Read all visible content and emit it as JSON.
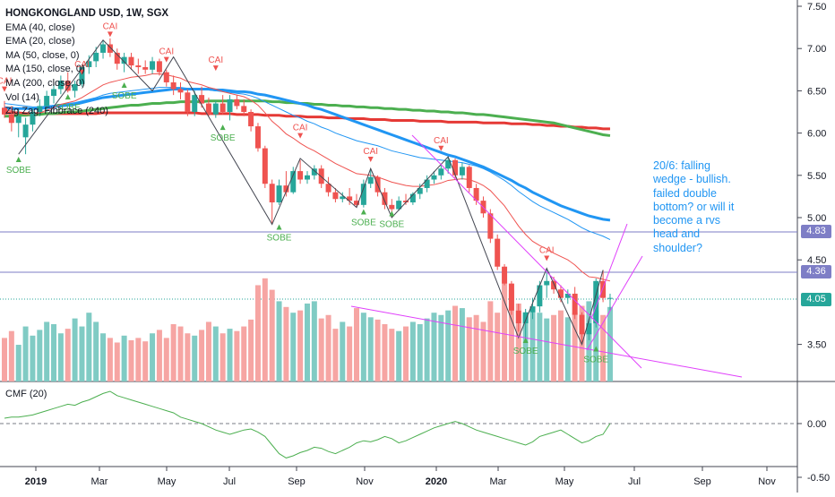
{
  "chart_data": {
    "type": "candlestick",
    "title": "HONGKONGLAND USD, 1W, SGX",
    "indicators": [
      "EMA (40, close)",
      "EMA (20, close)",
      "MA (50, close, 0)",
      "MA (150, close, 0)",
      "MA (200, close, 0)",
      "Vol (14)",
      "Zig Zag, Fibbrace (240)"
    ],
    "cmf_label": "CMF (20)",
    "note": "20/6: falling wedge - bullish. failed double bottom? or will it become a rvs head and shoulder?",
    "price_axis": {
      "ticks": [
        "7.50",
        "7.00",
        "6.50",
        "6.00",
        "5.50",
        "5.00",
        "4.50",
        "3.50"
      ],
      "ylim": [
        3.2,
        7.5
      ]
    },
    "cmf_axis": {
      "ticks": [
        "0.00",
        "-0.50"
      ]
    },
    "time_axis": {
      "ticks": [
        "2019",
        "Mar",
        "May",
        "Jul",
        "Sep",
        "Nov",
        "2020",
        "Mar",
        "May",
        "Jul",
        "Sep",
        "Nov"
      ]
    },
    "price_labels": [
      {
        "value": "4.83",
        "color": "#7e7ec6"
      },
      {
        "value": "4.36",
        "color": "#7e7ec6"
      },
      {
        "value": "4.05",
        "color": "#26a69a"
      }
    ],
    "candles": [
      {
        "o": 6.3,
        "h": 6.38,
        "l": 6.18,
        "c": 6.22
      },
      {
        "o": 6.22,
        "h": 6.32,
        "l": 6.02,
        "c": 6.12
      },
      {
        "o": 6.12,
        "h": 6.28,
        "l": 5.95,
        "c": 6.2
      },
      {
        "o": 5.95,
        "h": 6.18,
        "l": 5.75,
        "c": 6.1
      },
      {
        "o": 6.1,
        "h": 6.3,
        "l": 6.02,
        "c": 6.25
      },
      {
        "o": 6.25,
        "h": 6.4,
        "l": 6.2,
        "c": 6.32
      },
      {
        "o": 6.32,
        "h": 6.5,
        "l": 6.25,
        "c": 6.44
      },
      {
        "o": 6.44,
        "h": 6.58,
        "l": 6.35,
        "c": 6.52
      },
      {
        "o": 6.52,
        "h": 6.68,
        "l": 6.46,
        "c": 6.62
      },
      {
        "o": 6.62,
        "h": 6.72,
        "l": 6.48,
        "c": 6.5
      },
      {
        "o": 6.5,
        "h": 6.62,
        "l": 6.42,
        "c": 6.58
      },
      {
        "o": 6.58,
        "h": 6.8,
        "l": 6.55,
        "c": 6.78
      },
      {
        "o": 6.78,
        "h": 6.92,
        "l": 6.7,
        "c": 6.85
      },
      {
        "o": 6.85,
        "h": 7.02,
        "l": 6.78,
        "c": 6.95
      },
      {
        "o": 6.95,
        "h": 7.1,
        "l": 6.88,
        "c": 7.05
      },
      {
        "o": 7.05,
        "h": 7.12,
        "l": 6.9,
        "c": 6.95
      },
      {
        "o": 6.95,
        "h": 7.0,
        "l": 6.75,
        "c": 6.82
      },
      {
        "o": 6.82,
        "h": 6.95,
        "l": 6.72,
        "c": 6.9
      },
      {
        "o": 6.9,
        "h": 6.95,
        "l": 6.75,
        "c": 6.8
      },
      {
        "o": 6.8,
        "h": 6.88,
        "l": 6.7,
        "c": 6.78
      },
      {
        "o": 6.78,
        "h": 6.86,
        "l": 6.7,
        "c": 6.75
      },
      {
        "o": 6.75,
        "h": 6.9,
        "l": 6.7,
        "c": 6.85
      },
      {
        "o": 6.85,
        "h": 6.88,
        "l": 6.68,
        "c": 6.72
      },
      {
        "o": 6.72,
        "h": 6.75,
        "l": 6.55,
        "c": 6.6
      },
      {
        "o": 6.6,
        "h": 6.68,
        "l": 6.45,
        "c": 6.52
      },
      {
        "o": 6.52,
        "h": 6.6,
        "l": 6.4,
        "c": 6.48
      },
      {
        "o": 6.48,
        "h": 6.52,
        "l": 6.2,
        "c": 6.25
      },
      {
        "o": 6.25,
        "h": 6.5,
        "l": 6.2,
        "c": 6.45
      },
      {
        "o": 6.45,
        "h": 6.55,
        "l": 6.3,
        "c": 6.35
      },
      {
        "o": 6.35,
        "h": 6.42,
        "l": 6.2,
        "c": 6.22
      },
      {
        "o": 6.22,
        "h": 6.38,
        "l": 6.18,
        "c": 6.35
      },
      {
        "o": 6.35,
        "h": 6.45,
        "l": 6.22,
        "c": 6.25
      },
      {
        "o": 6.25,
        "h": 6.45,
        "l": 6.15,
        "c": 6.4
      },
      {
        "o": 6.4,
        "h": 6.45,
        "l": 6.28,
        "c": 6.32
      },
      {
        "o": 6.32,
        "h": 6.4,
        "l": 6.2,
        "c": 6.25
      },
      {
        "o": 6.25,
        "h": 6.28,
        "l": 6.02,
        "c": 6.08
      },
      {
        "o": 6.08,
        "h": 6.12,
        "l": 5.78,
        "c": 5.82
      },
      {
        "o": 5.82,
        "h": 5.85,
        "l": 5.35,
        "c": 5.4
      },
      {
        "o": 5.4,
        "h": 5.45,
        "l": 4.92,
        "c": 5.18
      },
      {
        "o": 5.18,
        "h": 5.45,
        "l": 5.15,
        "c": 5.38
      },
      {
        "o": 5.38,
        "h": 5.55,
        "l": 5.25,
        "c": 5.3
      },
      {
        "o": 5.3,
        "h": 5.6,
        "l": 5.28,
        "c": 5.55
      },
      {
        "o": 5.55,
        "h": 5.68,
        "l": 5.4,
        "c": 5.45
      },
      {
        "o": 5.45,
        "h": 5.55,
        "l": 5.4,
        "c": 5.5
      },
      {
        "o": 5.5,
        "h": 5.62,
        "l": 5.45,
        "c": 5.58
      },
      {
        "o": 5.58,
        "h": 5.62,
        "l": 5.35,
        "c": 5.4
      },
      {
        "o": 5.4,
        "h": 5.48,
        "l": 5.25,
        "c": 5.3
      },
      {
        "o": 5.3,
        "h": 5.35,
        "l": 5.18,
        "c": 5.22
      },
      {
        "o": 5.22,
        "h": 5.3,
        "l": 5.18,
        "c": 5.25
      },
      {
        "o": 5.25,
        "h": 5.35,
        "l": 5.15,
        "c": 5.2
      },
      {
        "o": 5.2,
        "h": 5.28,
        "l": 5.12,
        "c": 5.15
      },
      {
        "o": 5.15,
        "h": 5.45,
        "l": 5.12,
        "c": 5.4
      },
      {
        "o": 5.4,
        "h": 5.58,
        "l": 5.35,
        "c": 5.48
      },
      {
        "o": 5.48,
        "h": 5.5,
        "l": 5.25,
        "c": 5.3
      },
      {
        "o": 5.3,
        "h": 5.35,
        "l": 5.1,
        "c": 5.15
      },
      {
        "o": 5.15,
        "h": 5.22,
        "l": 5.0,
        "c": 5.1
      },
      {
        "o": 5.1,
        "h": 5.25,
        "l": 5.08,
        "c": 5.2
      },
      {
        "o": 5.2,
        "h": 5.28,
        "l": 5.15,
        "c": 5.18
      },
      {
        "o": 5.18,
        "h": 5.3,
        "l": 5.15,
        "c": 5.28
      },
      {
        "o": 5.28,
        "h": 5.4,
        "l": 5.22,
        "c": 5.35
      },
      {
        "o": 5.35,
        "h": 5.5,
        "l": 5.3,
        "c": 5.45
      },
      {
        "o": 5.45,
        "h": 5.55,
        "l": 5.4,
        "c": 5.5
      },
      {
        "o": 5.5,
        "h": 5.62,
        "l": 5.45,
        "c": 5.58
      },
      {
        "o": 5.58,
        "h": 5.72,
        "l": 5.52,
        "c": 5.68
      },
      {
        "o": 5.68,
        "h": 5.7,
        "l": 5.45,
        "c": 5.5
      },
      {
        "o": 5.5,
        "h": 5.65,
        "l": 5.45,
        "c": 5.6
      },
      {
        "o": 5.6,
        "h": 5.62,
        "l": 5.3,
        "c": 5.35
      },
      {
        "o": 5.35,
        "h": 5.4,
        "l": 5.15,
        "c": 5.2
      },
      {
        "o": 5.2,
        "h": 5.25,
        "l": 5.0,
        "c": 5.05
      },
      {
        "o": 5.05,
        "h": 5.1,
        "l": 4.7,
        "c": 4.75
      },
      {
        "o": 4.75,
        "h": 4.8,
        "l": 4.38,
        "c": 4.42
      },
      {
        "o": 4.42,
        "h": 4.45,
        "l": 4.2,
        "c": 4.22
      },
      {
        "o": 4.22,
        "h": 4.25,
        "l": 3.85,
        "c": 3.9
      },
      {
        "o": 3.9,
        "h": 3.98,
        "l": 3.65,
        "c": 3.75
      },
      {
        "o": 3.75,
        "h": 3.92,
        "l": 3.58,
        "c": 3.88
      },
      {
        "o": 3.88,
        "h": 4.05,
        "l": 3.8,
        "c": 3.95
      },
      {
        "o": 3.95,
        "h": 4.25,
        "l": 3.88,
        "c": 4.2
      },
      {
        "o": 4.2,
        "h": 4.4,
        "l": 4.05,
        "c": 4.25
      },
      {
        "o": 4.25,
        "h": 4.3,
        "l": 4.1,
        "c": 4.15
      },
      {
        "o": 4.15,
        "h": 4.2,
        "l": 4.0,
        "c": 4.05
      },
      {
        "o": 4.05,
        "h": 4.15,
        "l": 3.98,
        "c": 4.1
      },
      {
        "o": 4.1,
        "h": 4.18,
        "l": 3.8,
        "c": 3.85
      },
      {
        "o": 3.85,
        "h": 3.88,
        "l": 3.5,
        "c": 3.62
      },
      {
        "o": 3.62,
        "h": 3.8,
        "l": 3.55,
        "c": 3.75
      },
      {
        "o": 3.75,
        "h": 4.28,
        "l": 3.7,
        "c": 4.25
      },
      {
        "o": 4.25,
        "h": 4.38,
        "l": 4.0,
        "c": 4.05
      },
      {
        "o": 4.05,
        "h": 4.1,
        "l": 3.9,
        "c": 4.05
      }
    ],
    "volume": [
      38,
      44,
      32,
      48,
      40,
      45,
      52,
      50,
      42,
      46,
      55,
      48,
      60,
      52,
      42,
      38,
      34,
      40,
      36,
      38,
      35,
      42,
      45,
      38,
      50,
      48,
      42,
      40,
      45,
      52,
      48,
      42,
      46,
      44,
      48,
      54,
      84,
      90,
      80,
      70,
      65,
      60,
      62,
      68,
      70,
      55,
      58,
      46,
      52,
      48,
      64,
      60,
      56,
      54,
      50,
      46,
      44,
      48,
      52,
      50,
      55,
      60,
      58,
      62,
      66,
      64,
      56,
      58,
      52,
      70,
      60,
      86,
      80,
      68,
      58,
      64,
      60,
      55,
      58,
      62,
      56,
      60,
      66,
      70,
      62,
      58,
      65
    ],
    "ema20": [
      6.28,
      6.26,
      6.24,
      6.22,
      6.22,
      6.24,
      6.27,
      6.3,
      6.34,
      6.36,
      6.38,
      6.42,
      6.47,
      6.52,
      6.57,
      6.6,
      6.62,
      6.64,
      6.66,
      6.67,
      6.68,
      6.7,
      6.7,
      6.69,
      6.67,
      6.65,
      6.61,
      6.59,
      6.57,
      6.54,
      6.52,
      6.49,
      6.47,
      6.45,
      6.43,
      6.39,
      6.33,
      6.24,
      6.14,
      6.07,
      5.99,
      5.94,
      5.88,
      5.83,
      5.79,
      5.74,
      5.69,
      5.64,
      5.6,
      5.56,
      5.52,
      5.51,
      5.5,
      5.48,
      5.45,
      5.42,
      5.4,
      5.38,
      5.37,
      5.37,
      5.38,
      5.39,
      5.41,
      5.44,
      5.45,
      5.46,
      5.45,
      5.42,
      5.38,
      5.32,
      5.23,
      5.14,
      5.02,
      4.9,
      4.8,
      4.72,
      4.67,
      4.63,
      4.58,
      4.54,
      4.5,
      4.44,
      4.36,
      4.3,
      4.29,
      4.27,
      4.25
    ],
    "ema40": [
      6.35,
      6.34,
      6.33,
      6.32,
      6.31,
      6.31,
      6.32,
      6.33,
      6.34,
      6.35,
      6.36,
      6.38,
      6.4,
      6.42,
      6.45,
      6.47,
      6.48,
      6.49,
      6.5,
      6.51,
      6.52,
      6.53,
      6.54,
      6.54,
      6.54,
      6.54,
      6.53,
      6.52,
      6.52,
      6.51,
      6.5,
      6.49,
      6.48,
      6.47,
      6.46,
      6.44,
      6.41,
      6.37,
      6.33,
      6.29,
      6.25,
      6.21,
      6.18,
      6.14,
      6.11,
      6.07,
      6.04,
      6.0,
      5.97,
      5.94,
      5.91,
      5.89,
      5.87,
      5.85,
      5.82,
      5.79,
      5.77,
      5.75,
      5.73,
      5.71,
      5.7,
      5.69,
      5.68,
      5.67,
      5.66,
      5.65,
      5.63,
      5.61,
      5.58,
      5.54,
      5.49,
      5.44,
      5.38,
      5.31,
      5.25,
      5.19,
      5.14,
      5.1,
      5.06,
      5.02,
      4.98,
      4.93,
      4.88,
      4.84,
      4.81,
      4.78,
      4.74
    ],
    "ma50": [
      6.3,
      6.29,
      6.29,
      6.29,
      6.29,
      6.29,
      6.3,
      6.31,
      6.32,
      6.33,
      6.34,
      6.36,
      6.38,
      6.4,
      6.42,
      6.43,
      6.44,
      6.45,
      6.46,
      6.47,
      6.48,
      6.49,
      6.5,
      6.51,
      6.52,
      6.52,
      6.52,
      6.52,
      6.52,
      6.52,
      6.51,
      6.51,
      6.5,
      6.49,
      6.49,
      6.48,
      6.46,
      6.45,
      6.43,
      6.41,
      6.39,
      6.37,
      6.35,
      6.33,
      6.3,
      6.28,
      6.25,
      6.22,
      6.19,
      6.16,
      6.13,
      6.1,
      6.07,
      6.04,
      6.01,
      5.98,
      5.95,
      5.92,
      5.89,
      5.86,
      5.83,
      5.8,
      5.77,
      5.74,
      5.72,
      5.69,
      5.66,
      5.63,
      5.6,
      5.56,
      5.52,
      5.48,
      5.44,
      5.39,
      5.35,
      5.3,
      5.26,
      5.22,
      5.18,
      5.14,
      5.11,
      5.08,
      5.05,
      5.02,
      5.0,
      4.98,
      4.97
    ],
    "ma150": [
      6.2,
      6.2,
      6.21,
      6.21,
      6.22,
      6.22,
      6.23,
      6.23,
      6.24,
      6.25,
      6.25,
      6.26,
      6.27,
      6.28,
      6.29,
      6.3,
      6.31,
      6.32,
      6.33,
      6.33,
      6.34,
      6.35,
      6.35,
      6.36,
      6.36,
      6.37,
      6.37,
      6.37,
      6.37,
      6.38,
      6.38,
      6.38,
      6.38,
      6.38,
      6.38,
      6.38,
      6.38,
      6.38,
      6.37,
      6.37,
      6.36,
      6.36,
      6.35,
      6.35,
      6.34,
      6.34,
      6.33,
      6.33,
      6.32,
      6.32,
      6.31,
      6.31,
      6.3,
      6.3,
      6.29,
      6.29,
      6.28,
      6.28,
      6.27,
      6.27,
      6.26,
      6.26,
      6.25,
      6.25,
      6.24,
      6.24,
      6.23,
      6.22,
      6.22,
      6.21,
      6.2,
      6.19,
      6.18,
      6.17,
      6.16,
      6.15,
      6.14,
      6.13,
      6.12,
      6.1,
      6.08,
      6.06,
      6.04,
      6.02,
      6.0,
      5.98,
      5.97
    ],
    "ma200": [
      6.24,
      6.24,
      6.24,
      6.23,
      6.23,
      6.23,
      6.23,
      6.23,
      6.23,
      6.23,
      6.23,
      6.23,
      6.23,
      6.23,
      6.24,
      6.24,
      6.24,
      6.24,
      6.24,
      6.24,
      6.24,
      6.24,
      6.24,
      6.24,
      6.24,
      6.24,
      6.24,
      6.24,
      6.23,
      6.23,
      6.23,
      6.23,
      6.23,
      6.22,
      6.22,
      6.22,
      6.22,
      6.21,
      6.21,
      6.21,
      6.2,
      6.2,
      6.2,
      6.19,
      6.19,
      6.19,
      6.18,
      6.18,
      6.18,
      6.17,
      6.17,
      6.17,
      6.16,
      6.16,
      6.16,
      6.15,
      6.15,
      6.15,
      6.15,
      6.14,
      6.14,
      6.14,
      6.14,
      6.13,
      6.13,
      6.13,
      6.13,
      6.13,
      6.12,
      6.12,
      6.12,
      6.12,
      6.11,
      6.11,
      6.11,
      6.1,
      6.1,
      6.09,
      6.09,
      6.08,
      6.08,
      6.07,
      6.07,
      6.06,
      6.06,
      6.05,
      6.05
    ],
    "cmf": [
      0.05,
      0.06,
      0.06,
      0.07,
      0.08,
      0.1,
      0.12,
      0.14,
      0.16,
      0.18,
      0.17,
      0.2,
      0.22,
      0.25,
      0.28,
      0.3,
      0.26,
      0.24,
      0.22,
      0.2,
      0.18,
      0.16,
      0.14,
      0.12,
      0.1,
      0.06,
      0.04,
      0.02,
      0.0,
      -0.03,
      -0.06,
      -0.08,
      -0.1,
      -0.08,
      -0.06,
      -0.05,
      -0.08,
      -0.12,
      -0.2,
      -0.28,
      -0.32,
      -0.3,
      -0.27,
      -0.25,
      -0.22,
      -0.23,
      -0.26,
      -0.28,
      -0.25,
      -0.22,
      -0.18,
      -0.16,
      -0.17,
      -0.15,
      -0.12,
      -0.14,
      -0.18,
      -0.16,
      -0.13,
      -0.1,
      -0.07,
      -0.04,
      -0.02,
      0.0,
      0.02,
      0.0,
      -0.03,
      -0.06,
      -0.08,
      -0.1,
      -0.12,
      -0.14,
      -0.16,
      -0.18,
      -0.2,
      -0.17,
      -0.12,
      -0.1,
      -0.08,
      -0.06,
      -0.1,
      -0.14,
      -0.18,
      -0.16,
      -0.12,
      -0.1,
      0.0
    ],
    "zigzag": [
      {
        "i": 2,
        "v": 5.75
      },
      {
        "i": 14,
        "v": 7.1
      },
      {
        "i": 21,
        "v": 6.5
      },
      {
        "i": 24,
        "v": 6.9
      },
      {
        "i": 38,
        "v": 4.92
      },
      {
        "i": 42,
        "v": 5.7
      },
      {
        "i": 50,
        "v": 5.12
      },
      {
        "i": 52,
        "v": 5.58
      },
      {
        "i": 55,
        "v": 5.0
      },
      {
        "i": 63,
        "v": 5.72
      },
      {
        "i": 73,
        "v": 3.58
      },
      {
        "i": 77,
        "v": 4.4
      },
      {
        "i": 82,
        "v": 3.5
      },
      {
        "i": 85,
        "v": 4.38
      }
    ],
    "markers": [
      {
        "i": 0,
        "v": 6.55,
        "text": "CAI",
        "dir": "top"
      },
      {
        "i": 11,
        "v": 6.75,
        "text": "CAI",
        "dir": "top"
      },
      {
        "i": 15,
        "v": 7.2,
        "text": "CAI",
        "dir": "top"
      },
      {
        "i": 23,
        "v": 6.9,
        "text": "CAI",
        "dir": "top"
      },
      {
        "i": 30,
        "v": 6.8,
        "text": "CAI",
        "dir": "top"
      },
      {
        "i": 42,
        "v": 6.0,
        "text": "CAI",
        "dir": "top"
      },
      {
        "i": 52,
        "v": 5.72,
        "text": "CAI",
        "dir": "top"
      },
      {
        "i": 62,
        "v": 5.85,
        "text": "CAI",
        "dir": "top"
      },
      {
        "i": 77,
        "v": 4.55,
        "text": "CAI",
        "dir": "top"
      },
      {
        "i": 2,
        "v": 5.72,
        "text": "SOBE",
        "dir": "bottom"
      },
      {
        "i": 9,
        "v": 6.46,
        "text": "SOBE",
        "dir": "bottom"
      },
      {
        "i": 17,
        "v": 6.6,
        "text": "SOBE",
        "dir": "bottom"
      },
      {
        "i": 31,
        "v": 6.1,
        "text": "SOBE",
        "dir": "bottom"
      },
      {
        "i": 39,
        "v": 4.92,
        "text": "SOBE",
        "dir": "bottom"
      },
      {
        "i": 51,
        "v": 5.1,
        "text": "SOBE",
        "dir": "bottom"
      },
      {
        "i": 55,
        "v": 5.08,
        "text": "SOBE",
        "dir": "bottom"
      },
      {
        "i": 74,
        "v": 3.58,
        "text": "SOBE",
        "dir": "bottom"
      },
      {
        "i": 84,
        "v": 3.48,
        "text": "SOBE",
        "dir": "bottom"
      }
    ],
    "colors": {
      "up": "#26a69a",
      "down": "#ef5350",
      "up_vol": "#80cbc4",
      "down_vol": "#f6a5a3",
      "ema20": "#ef5350",
      "ema40": "#2196f3",
      "ma50": "#2196f3",
      "ma150": "#4caf50",
      "ma200": "#e53935",
      "cmf": "#4caf50",
      "zigzag": "#434651",
      "trend": "#e040fb",
      "level": "#7e7ec6",
      "note": "#2196f3"
    }
  }
}
